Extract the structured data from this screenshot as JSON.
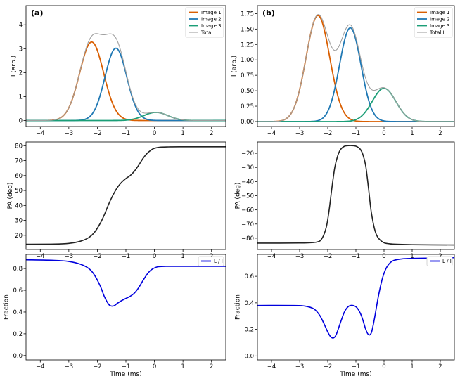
{
  "chart_data": [
    {
      "id": "a1",
      "type": "line",
      "panel_label": "(a)",
      "xlim": [
        -4.5,
        2.5
      ],
      "ylim": [
        -0.25,
        4.8
      ],
      "xticks": [
        -4,
        -3,
        -2,
        -1,
        0,
        1,
        2
      ],
      "yticks": [
        0,
        1,
        2,
        3,
        4
      ],
      "xlabel": "",
      "ylabel": "I (arb.)",
      "legend": "top-right",
      "series": [
        {
          "name": "Image 1",
          "color": "#d95f02",
          "gaussians": [
            [
              3.28,
              -2.2,
              0.42
            ]
          ]
        },
        {
          "name": "Image 2",
          "color": "#1f78b4",
          "gaussians": [
            [
              3.02,
              -1.35,
              0.38
            ]
          ]
        },
        {
          "name": "Image 3",
          "color": "#1b9e77",
          "gaussians": [
            [
              0.34,
              0.05,
              0.42
            ]
          ]
        },
        {
          "name": "Total I",
          "color": "#a0a0a0",
          "sum": true
        }
      ]
    },
    {
      "id": "b1",
      "type": "line",
      "panel_label": "(b)",
      "xlim": [
        -4.5,
        2.5
      ],
      "ylim": [
        -0.08,
        1.88
      ],
      "xticks": [
        -4,
        -3,
        -2,
        -1,
        0,
        1,
        2
      ],
      "yticks": [
        0.0,
        0.25,
        0.5,
        0.75,
        1.0,
        1.25,
        1.5,
        1.75
      ],
      "ytick_labels": [
        "0.00",
        "0.25",
        "0.50",
        "0.75",
        "1.00",
        "1.25",
        "1.50",
        "1.75"
      ],
      "xlabel": "",
      "ylabel": "I (arb.)",
      "legend": "top-right",
      "series": [
        {
          "name": "Image 1",
          "color": "#d95f02",
          "gaussians": [
            [
              1.72,
              -2.35,
              0.42
            ]
          ]
        },
        {
          "name": "Image 2",
          "color": "#1f78b4",
          "gaussians": [
            [
              1.52,
              -1.2,
              0.38
            ]
          ]
        },
        {
          "name": "Image 3",
          "color": "#1b9e77",
          "gaussians": [
            [
              0.54,
              0.0,
              0.42
            ]
          ]
        },
        {
          "name": "Total I",
          "color": "#a0a0a0",
          "sum": true
        }
      ]
    },
    {
      "id": "a2",
      "type": "line",
      "xlim": [
        -4.5,
        2.5
      ],
      "ylim": [
        10.5,
        82.5
      ],
      "xticks": [
        -4,
        -3,
        -2,
        -1,
        0,
        1,
        2
      ],
      "yticks": [
        20,
        30,
        40,
        50,
        60,
        70,
        80
      ],
      "xlabel": "",
      "ylabel": "PA (deg)",
      "series": [
        {
          "name": "PA",
          "color": "#222222",
          "x": [
            -4.5,
            -3.5,
            -3.0,
            -2.6,
            -2.3,
            -2.1,
            -1.9,
            -1.75,
            -1.6,
            -1.45,
            -1.3,
            -1.15,
            -1.0,
            -0.85,
            -0.7,
            -0.55,
            -0.4,
            -0.25,
            -0.1,
            0.0,
            0.2,
            0.5,
            1.0,
            2.5
          ],
          "y": [
            14.0,
            14.1,
            14.6,
            16.0,
            18.5,
            22.0,
            28.0,
            34.0,
            41.0,
            47.0,
            52.0,
            55.5,
            58.0,
            60.0,
            63.0,
            67.0,
            71.5,
            75.0,
            77.3,
            78.3,
            79.0,
            79.2,
            79.3,
            79.3
          ]
        }
      ]
    },
    {
      "id": "b2",
      "type": "line",
      "xlim": [
        -4.5,
        2.5
      ],
      "ylim": [
        -88,
        -12
      ],
      "xticks": [
        -4,
        -3,
        -2,
        -1,
        0,
        1,
        2
      ],
      "yticks": [
        -80,
        -70,
        -60,
        -50,
        -40,
        -30,
        -20
      ],
      "xlabel": "",
      "ylabel": "PA (deg)",
      "series": [
        {
          "name": "PA",
          "color": "#222222",
          "x": [
            -4.5,
            -3.0,
            -2.4,
            -2.2,
            -2.05,
            -1.95,
            -1.85,
            -1.75,
            -1.65,
            -1.55,
            -1.4,
            -1.2,
            -1.0,
            -0.85,
            -0.75,
            -0.65,
            -0.55,
            -0.45,
            -0.3,
            -0.1,
            0.2,
            1.0,
            2.5
          ],
          "y": [
            -83.5,
            -83.4,
            -82.8,
            -80.0,
            -72.0,
            -60.0,
            -44.0,
            -30.0,
            -22.0,
            -17.5,
            -15.0,
            -14.5,
            -15.0,
            -17.0,
            -21.0,
            -29.0,
            -45.0,
            -62.0,
            -76.0,
            -82.0,
            -84.0,
            -84.6,
            -84.8
          ]
        }
      ]
    },
    {
      "id": "a3",
      "type": "line",
      "xlim": [
        -4.5,
        2.5
      ],
      "ylim": [
        -0.04,
        0.93
      ],
      "xticks": [
        -4,
        -3,
        -2,
        -1,
        0,
        1,
        2
      ],
      "yticks": [
        0.0,
        0.2,
        0.4,
        0.6,
        0.8
      ],
      "ytick_labels": [
        "0.0",
        "0.2",
        "0.4",
        "0.6",
        "0.8"
      ],
      "xlabel": "Time (ms)",
      "ylabel": "Fraction",
      "legend": "top-right",
      "series": [
        {
          "name": "L / I",
          "color": "#0000dd",
          "x": [
            -4.5,
            -3.5,
            -3.0,
            -2.6,
            -2.3,
            -2.1,
            -1.9,
            -1.75,
            -1.6,
            -1.5,
            -1.4,
            -1.3,
            -1.15,
            -1.0,
            -0.85,
            -0.7,
            -0.55,
            -0.4,
            -0.25,
            -0.1,
            0.1,
            0.4,
            1.0,
            2.5
          ],
          "y": [
            0.88,
            0.875,
            0.865,
            0.84,
            0.8,
            0.74,
            0.64,
            0.54,
            0.47,
            0.455,
            0.46,
            0.48,
            0.505,
            0.525,
            0.545,
            0.575,
            0.625,
            0.69,
            0.75,
            0.79,
            0.815,
            0.82,
            0.82,
            0.82
          ]
        }
      ]
    },
    {
      "id": "b3",
      "type": "line",
      "xlim": [
        -4.5,
        2.5
      ],
      "ylim": [
        -0.03,
        0.765
      ],
      "xticks": [
        -4,
        -3,
        -2,
        -1,
        0,
        1,
        2
      ],
      "yticks": [
        0.0,
        0.2,
        0.4,
        0.6
      ],
      "ytick_labels": [
        "0.0",
        "0.2",
        "0.4",
        "0.6"
      ],
      "xlabel": "Time (ms)",
      "ylabel": "Fraction",
      "legend": "top-right",
      "series": [
        {
          "name": "L / I",
          "color": "#0000dd",
          "x": [
            -4.5,
            -3.2,
            -2.8,
            -2.5,
            -2.3,
            -2.15,
            -2.0,
            -1.9,
            -1.8,
            -1.7,
            -1.55,
            -1.4,
            -1.25,
            -1.1,
            -0.95,
            -0.8,
            -0.65,
            -0.55,
            -0.45,
            -0.35,
            -0.2,
            -0.05,
            0.1,
            0.3,
            0.6,
            1.0,
            2.5
          ],
          "y": [
            0.38,
            0.38,
            0.375,
            0.355,
            0.31,
            0.25,
            0.18,
            0.145,
            0.135,
            0.16,
            0.25,
            0.335,
            0.375,
            0.38,
            0.36,
            0.3,
            0.2,
            0.16,
            0.175,
            0.27,
            0.45,
            0.59,
            0.67,
            0.715,
            0.73,
            0.735,
            0.74
          ]
        }
      ]
    }
  ]
}
